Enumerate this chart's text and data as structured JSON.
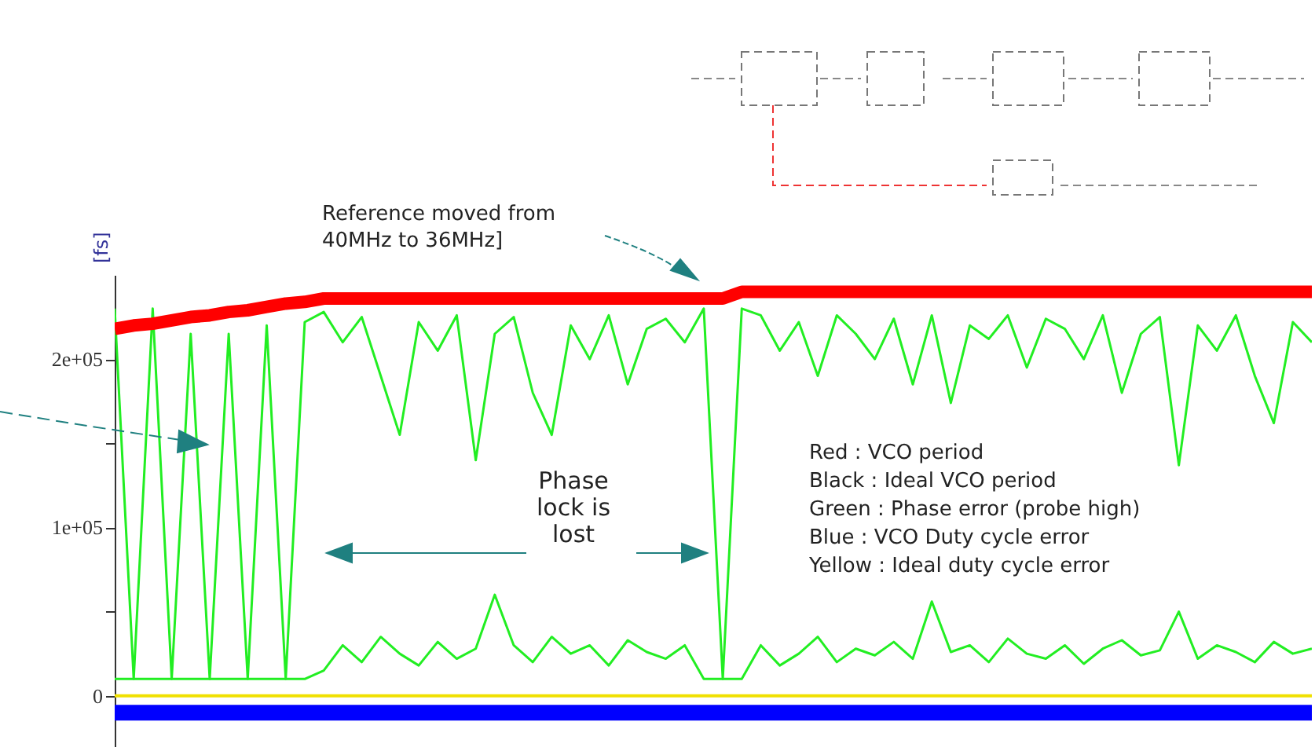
{
  "chart_data": {
    "type": "line",
    "ylabel": "[fs]",
    "ylim": [
      -30000,
      250000
    ],
    "yticks": [
      {
        "value": 0,
        "label": "0"
      },
      {
        "value": 50000,
        "label": null
      },
      {
        "value": 100000,
        "label": "1e+05"
      },
      {
        "value": 150000,
        "label": null
      },
      {
        "value": 200000,
        "label": "2e+05"
      }
    ],
    "tick_labels": "y",
    "categories": [
      null,
      null,
      null,
      null,
      null,
      null,
      null,
      null,
      null,
      null,
      null,
      null,
      null,
      null,
      null,
      null,
      null,
      null,
      null,
      null,
      null,
      null,
      null,
      null,
      null,
      null,
      null,
      null,
      null,
      null,
      null,
      null,
      null,
      null,
      null,
      null,
      null,
      null,
      null,
      null,
      null,
      null,
      null,
      null,
      null,
      null,
      null,
      null,
      null,
      null,
      null,
      null,
      null,
      null,
      null,
      null,
      null,
      null,
      null,
      null,
      null,
      null,
      null,
      null
    ],
    "series": [
      {
        "color": "#22ee22",
        "values": [
          230000,
          10000,
          230000,
          10000,
          215000,
          10000,
          215000,
          10000,
          220000,
          10000,
          222000,
          228000,
          210000,
          225000,
          190000,
          155000,
          222000,
          205000,
          226000,
          140000,
          215000,
          225000,
          180000,
          155000,
          220000,
          200000,
          226000,
          185000,
          218000,
          224000,
          210000,
          230000,
          10000,
          230000,
          226000,
          205000,
          222000,
          190000,
          226000,
          215000,
          200000,
          224000,
          185000,
          226000,
          174000,
          220000,
          212000,
          226000,
          195000,
          224000,
          218000,
          200000,
          226000,
          180000,
          215000,
          225000,
          137000,
          220000,
          205000,
          226000,
          190000,
          162000,
          222000,
          210000
        ]
      },
      {
        "color": "#22ee22",
        "values": [
          10000,
          10000,
          10000,
          10000,
          10000,
          10000,
          10000,
          10000,
          10000,
          10000,
          10000,
          15000,
          30000,
          20000,
          35000,
          25000,
          18000,
          32000,
          22000,
          28000,
          60000,
          30000,
          20000,
          35000,
          25000,
          30000,
          18000,
          33000,
          26000,
          22000,
          30000,
          10000,
          10000,
          10000,
          30000,
          18000,
          25000,
          35000,
          20000,
          28000,
          24000,
          32000,
          22000,
          56000,
          26000,
          30000,
          20000,
          34000,
          25000,
          22000,
          30000,
          19000,
          28000,
          33000,
          24000,
          27000,
          50000,
          22000,
          30000,
          26000,
          20000,
          32000,
          25000,
          28000
        ]
      },
      {
        "color": "#ff0000",
        "values": [
          218000,
          220000,
          221000,
          223000,
          225000,
          226000,
          228000,
          229000,
          231000,
          233000,
          234000,
          236000,
          236000,
          236000,
          236000,
          236000,
          236000,
          236000,
          236000,
          236000,
          236000,
          236000,
          236000,
          236000,
          236000,
          236000,
          236000,
          236000,
          236000,
          236000,
          236000,
          236000,
          236000,
          240000,
          240000,
          240000,
          240000,
          240000,
          240000,
          240000,
          240000,
          240000,
          240000,
          240000,
          240000,
          240000,
          240000,
          240000,
          240000,
          240000,
          240000,
          240000,
          240000,
          240000,
          240000,
          240000,
          240000,
          240000,
          240000,
          240000,
          240000,
          240000,
          240000,
          240000
        ]
      },
      {
        "color": "#0000ff",
        "values": [
          -10000,
          -10000,
          -10000,
          -10000,
          -10000,
          -10000,
          -10000,
          -10000,
          -10000,
          -10000,
          -10000,
          -10000,
          -10000,
          -10000,
          -10000,
          -10000,
          -10000,
          -10000,
          -10000,
          -10000,
          -10000,
          -10000,
          -10000,
          -10000,
          -10000,
          -10000,
          -10000,
          -10000,
          -10000,
          -10000,
          -10000,
          -10000,
          -10000,
          -10000,
          -10000,
          -10000,
          -10000,
          -10000,
          -10000,
          -10000,
          -10000,
          -10000,
          -10000,
          -10000,
          -10000,
          -10000,
          -10000,
          -10000,
          -10000,
          -10000,
          -10000,
          -10000,
          -10000,
          -10000,
          -10000,
          -10000,
          -10000,
          -10000,
          -10000,
          -10000,
          -10000,
          -10000,
          -10000,
          -10000
        ]
      },
      {
        "color": "#f0e000",
        "values": [
          0,
          0,
          0,
          0,
          0,
          0,
          0,
          0,
          0,
          0,
          0,
          0,
          0,
          0,
          0,
          0,
          0,
          0,
          0,
          0,
          0,
          0,
          0,
          0,
          0,
          0,
          0,
          0,
          0,
          0,
          0,
          0,
          0,
          0,
          0,
          0,
          0,
          0,
          0,
          0,
          0,
          0,
          0,
          0,
          0,
          0,
          0,
          0,
          0,
          0,
          0,
          0,
          0,
          0,
          0,
          0,
          0,
          0,
          0,
          0,
          0,
          0,
          0,
          0
        ]
      }
    ],
    "annotations": [
      "Reference moved from 40MHz to 36MHz]",
      "Phase lock is lost",
      "Red : VCO period",
      "Black : Ideal VCO period",
      "Green : Phase error (probe high)",
      "Blue : VCO Duty cycle error",
      "Yellow : Ideal duty cycle error"
    ]
  }
}
